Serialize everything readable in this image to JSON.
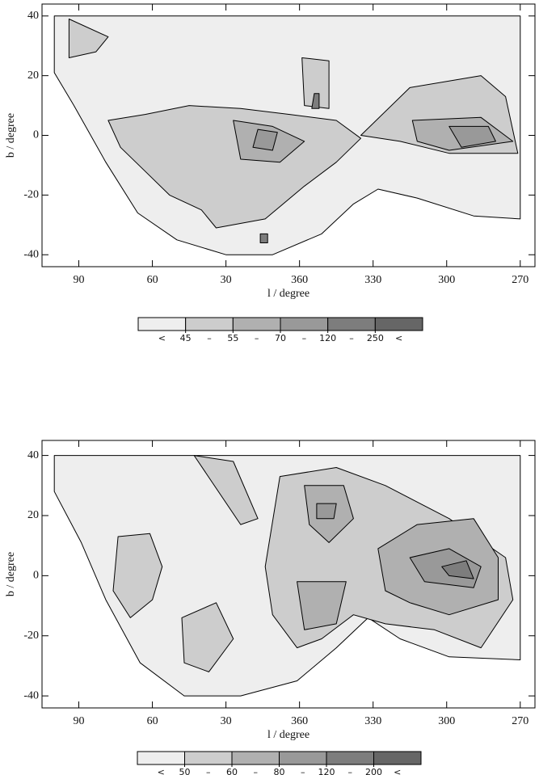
{
  "chart_data": [
    {
      "type": "contour",
      "xlabel": "l / degree",
      "ylabel": "b / degree",
      "xlim": [
        105,
        -96
      ],
      "ylim": [
        -44,
        44
      ],
      "xticks": [
        90,
        60,
        30,
        {
          "value": 0,
          "label": "360"
        },
        {
          "value": -30,
          "label": "330"
        },
        {
          "value": -60,
          "label": "300"
        },
        {
          "value": -90,
          "label": "270"
        }
      ],
      "yticks": [
        -40,
        -20,
        0,
        20,
        40
      ],
      "levels": [
        45,
        55,
        70,
        120,
        250
      ],
      "level_colors": [
        "#eeeeee",
        "#cdcdcd",
        "#b0b0b0",
        "#999999",
        "#7d7d7d",
        "#666666"
      ],
      "colorbar_symbols": [
        "<",
        "–",
        "–",
        "–",
        "–",
        "<"
      ],
      "regions": [
        {
          "band": 0,
          "l": [
            100,
            -90,
            -90,
            -71,
            -48,
            -32,
            -22,
            -9,
            11,
            30,
            50,
            66,
            79,
            92,
            100
          ],
          "b": [
            40,
            40,
            -28,
            -27,
            -21,
            -18,
            -23,
            -33,
            -40,
            -40,
            -35,
            -26,
            -9,
            10,
            21
          ]
        },
        {
          "band": 1,
          "l": [
            78,
            63,
            45,
            24,
            4,
            -15,
            -25,
            -15,
            -2,
            14,
            34,
            40,
            53,
            63,
            73
          ],
          "b": [
            5,
            7,
            10,
            9,
            7,
            5,
            -1,
            -9,
            -17,
            -28,
            -31,
            -25,
            -20,
            -12,
            -4
          ]
        },
        {
          "band": 1,
          "l": [
            -45,
            -74,
            -84,
            -89,
            -61,
            -41,
            -25
          ],
          "b": [
            16,
            20,
            13,
            -6,
            -6,
            -2,
            0
          ]
        },
        {
          "band": 1,
          "l": [
            94,
            78,
            83,
            94
          ],
          "b": [
            39,
            33,
            28,
            26
          ]
        },
        {
          "band": 1,
          "l": [
            -1,
            -12,
            -12,
            -2
          ],
          "b": [
            26,
            25,
            9,
            10
          ]
        },
        {
          "band": 2,
          "l": [
            27,
            11,
            -2,
            8,
            24
          ],
          "b": [
            5,
            3,
            -2,
            -9,
            -8
          ]
        },
        {
          "band": 2,
          "l": [
            -46,
            -74,
            -87,
            -61,
            -48
          ],
          "b": [
            5,
            6,
            -2,
            -5,
            -2
          ]
        },
        {
          "band": 3,
          "l": [
            -61,
            -77,
            -80,
            -66
          ],
          "b": [
            3,
            3,
            -2,
            -4
          ]
        },
        {
          "band": 3,
          "l": [
            17,
            9,
            11,
            19
          ],
          "b": [
            2,
            1,
            -5,
            -4
          ]
        },
        {
          "band": 4,
          "l": [
            -6,
            -8,
            -8,
            -5
          ],
          "b": [
            14,
            14,
            9,
            9
          ]
        },
        {
          "band": 4,
          "l": [
            13,
            16,
            16,
            13
          ],
          "b": [
            -33,
            -33,
            -36,
            -36
          ]
        }
      ]
    },
    {
      "type": "contour",
      "xlabel": "l / degree",
      "ylabel": "b / degree",
      "xlim": [
        105,
        -96
      ],
      "ylim": [
        -44,
        45
      ],
      "xticks": [
        90,
        60,
        30,
        {
          "value": 0,
          "label": "360"
        },
        {
          "value": -30,
          "label": "330"
        },
        {
          "value": -60,
          "label": "300"
        },
        {
          "value": -90,
          "label": "270"
        }
      ],
      "yticks": [
        -40,
        -20,
        0,
        20,
        40
      ],
      "levels": [
        50,
        60,
        80,
        120,
        200
      ],
      "level_colors": [
        "#eeeeee",
        "#cdcdcd",
        "#b0b0b0",
        "#999999",
        "#7d7d7d",
        "#666666"
      ],
      "colorbar_symbols": [
        "<",
        "–",
        "–",
        "–",
        "–",
        "<"
      ],
      "regions": [
        {
          "band": 0,
          "l": [
            100,
            -90,
            -90,
            -61,
            -41,
            -28,
            -15,
            1,
            24,
            47,
            65,
            79,
            89,
            100
          ],
          "b": [
            40,
            40,
            -28,
            -27,
            -21,
            -14,
            -24,
            -35,
            -40,
            -40,
            -29,
            -8,
            11,
            28
          ]
        },
        {
          "band": 1,
          "l": [
            74,
            61,
            56,
            60,
            69,
            76
          ],
          "b": [
            13,
            14,
            3,
            -8,
            -14,
            -5
          ]
        },
        {
          "band": 1,
          "l": [
            48,
            34,
            27,
            37,
            47
          ],
          "b": [
            -14,
            -9,
            -21,
            -32,
            -29
          ]
        },
        {
          "band": 1,
          "l": [
            14,
            8,
            -15,
            -35,
            -61,
            -84,
            -87,
            -74,
            -55,
            -35,
            -22,
            -9,
            1,
            11
          ],
          "b": [
            3,
            33,
            36,
            30,
            19,
            6,
            -8,
            -24,
            -18,
            -16,
            -13,
            -21,
            -24,
            -13
          ]
        },
        {
          "band": 1,
          "l": [
            43,
            27,
            17,
            24
          ],
          "b": [
            40,
            38,
            19,
            17
          ]
        },
        {
          "band": 2,
          "l": [
            -2,
            -18,
            -22,
            -12,
            -4
          ],
          "b": [
            30,
            30,
            19,
            11,
            17
          ]
        },
        {
          "band": 2,
          "l": [
            -32,
            -48,
            -71,
            -81,
            -81,
            -61,
            -45,
            -35
          ],
          "b": [
            9,
            17,
            19,
            6,
            -8,
            -13,
            -9,
            -5
          ]
        },
        {
          "band": 2,
          "l": [
            1,
            -19,
            -15,
            -2
          ],
          "b": [
            -2,
            -2,
            -16,
            -18
          ]
        },
        {
          "band": 3,
          "l": [
            -45,
            -61,
            -74,
            -71,
            -51
          ],
          "b": [
            6,
            9,
            3,
            -4,
            -2
          ]
        },
        {
          "band": 3,
          "l": [
            -7,
            -15,
            -14,
            -7
          ],
          "b": [
            24,
            24,
            19,
            19
          ]
        },
        {
          "band": 4,
          "l": [
            -58,
            -68,
            -71,
            -61
          ],
          "b": [
            3,
            5,
            -1,
            0
          ]
        }
      ]
    }
  ]
}
